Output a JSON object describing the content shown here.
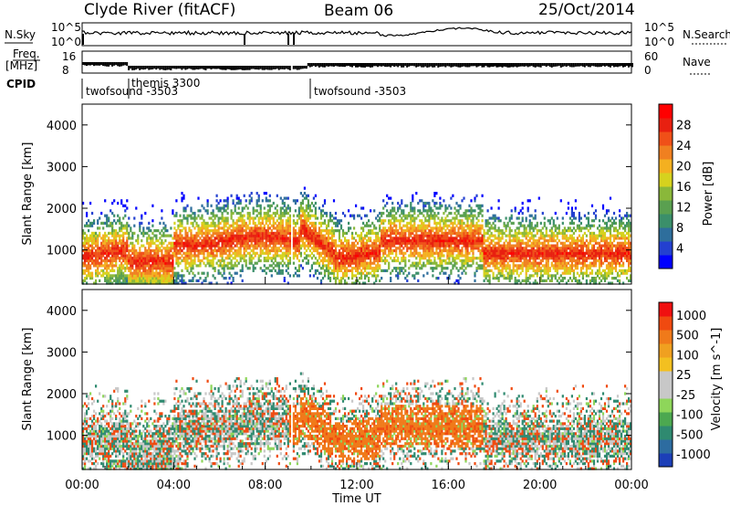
{
  "header": {
    "station": "Clyde River (fitACF)",
    "beam": "Beam 06",
    "date": "25/Oct/2014"
  },
  "strips": {
    "nsky_label": "N.Sky",
    "nsky_ticks": [
      "10^5",
      "10^0"
    ],
    "nsearch_ticks": [
      "10^5",
      "10^0"
    ],
    "nsearch_label": "N.Search",
    "freq_label_top": "Freq.",
    "freq_label_bottom": "[MHz]",
    "freq_ticks": [
      "16",
      "8"
    ],
    "nave_ticks": [
      "60",
      "0"
    ],
    "nave_label": "Nave",
    "cpid_label": "CPID",
    "programs": [
      {
        "name": "twofsound -3503"
      },
      {
        "name": "themis 3300"
      },
      {
        "name": "twofsound -3503"
      }
    ]
  },
  "chart_data": [
    {
      "type": "heatmap",
      "title": "",
      "xlabel": "",
      "ylabel": "Slant Range [km]",
      "x_range_hours": [
        0,
        24
      ],
      "ylim": [
        180,
        4500
      ],
      "yticks": [
        1000,
        2000,
        3000,
        4000
      ],
      "colorbar": {
        "label": "Power [dB]",
        "range": [
          0,
          32
        ],
        "ticks": [
          4,
          8,
          12,
          16,
          20,
          24,
          28
        ],
        "colors": [
          "#0000ff",
          "#2340d0",
          "#2e6e9c",
          "#3b8f6a",
          "#5aa050",
          "#8ab83a",
          "#d6d21e",
          "#f4b020",
          "#f08020",
          "#f05018",
          "#e82010",
          "#ff0000"
        ]
      }
    },
    {
      "type": "heatmap",
      "title": "",
      "xlabel": "Time UT",
      "ylabel": "Slant Range [km]",
      "x_range_hours": [
        0,
        24
      ],
      "xticks": [
        "00:00",
        "04:00",
        "08:00",
        "12:00",
        "16:00",
        "20:00",
        "00:00"
      ],
      "ylim": [
        180,
        4500
      ],
      "yticks": [
        1000,
        2000,
        3000,
        4000
      ],
      "colorbar": {
        "label": "Velocity [m s^-1]",
        "ticks": [
          "1000",
          "500",
          "100",
          "25",
          "-25",
          "-100",
          "-500",
          "-1000"
        ],
        "colors": [
          "#1c3fb8",
          "#2d6ca0",
          "#2f8a70",
          "#4ca850",
          "#8ed65a",
          "#c8c8c8",
          "#c8c8c8",
          "#f3c020",
          "#f0a020",
          "#f07a1a",
          "#f04a10",
          "#f01010"
        ]
      }
    }
  ]
}
